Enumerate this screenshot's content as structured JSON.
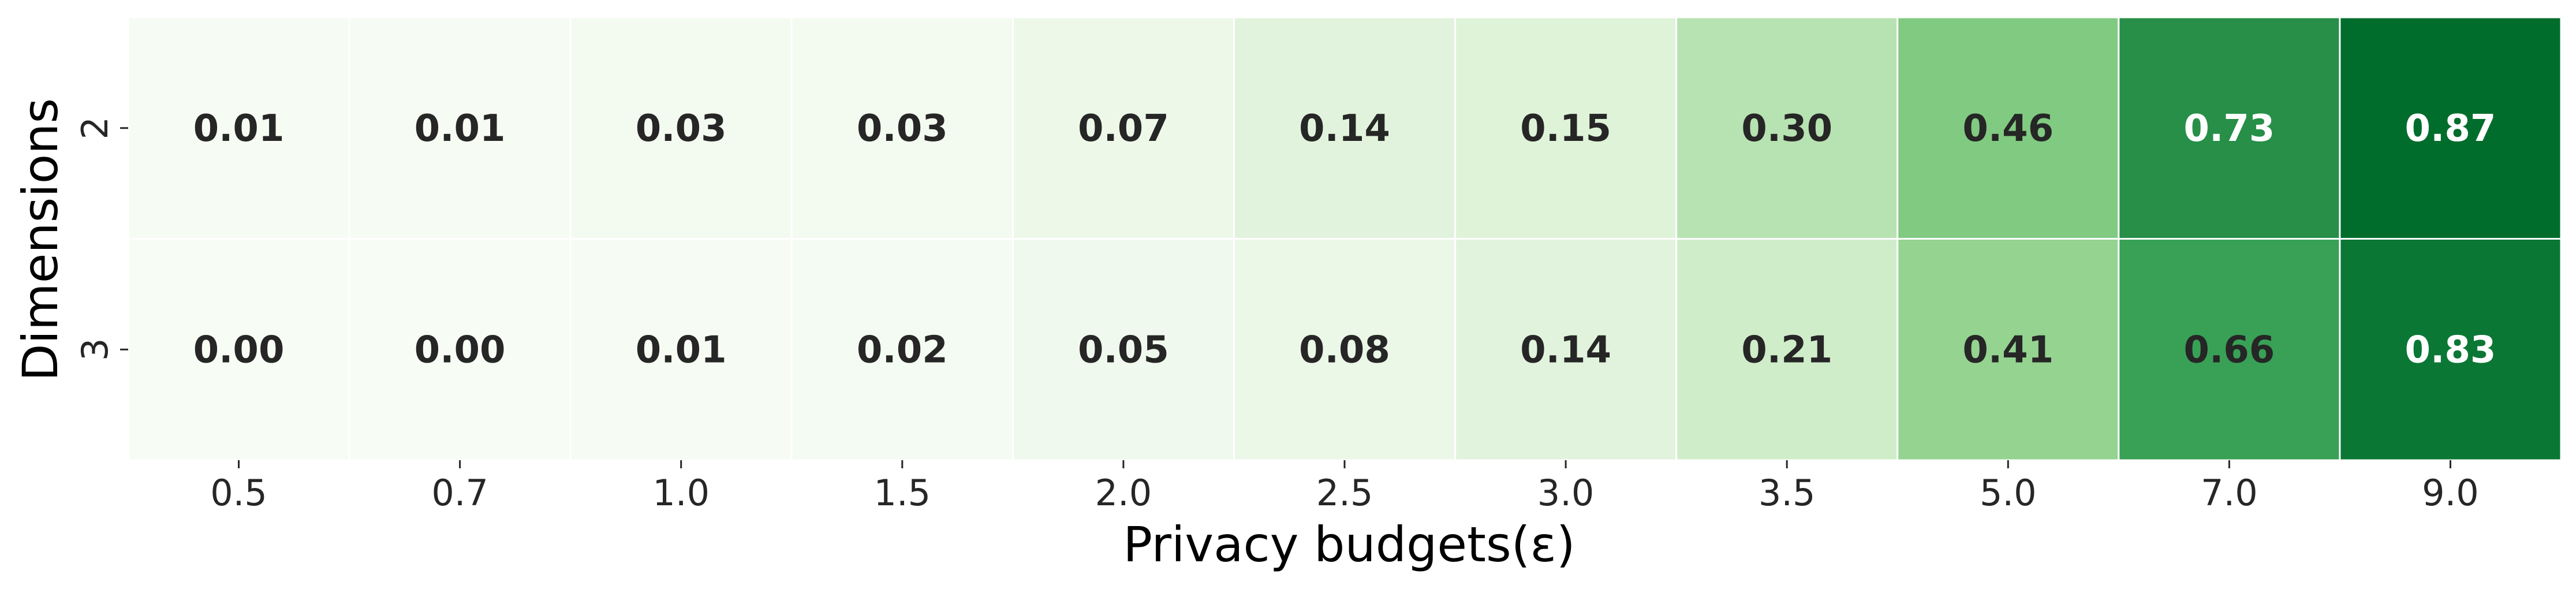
{
  "chart_data": {
    "type": "heatmap",
    "xlabel": "Privacy budgets(ε)",
    "ylabel": "Dimensions",
    "x_categories": [
      "0.5",
      "0.7",
      "1.0",
      "1.5",
      "2.0",
      "2.5",
      "3.0",
      "3.5",
      "5.0",
      "7.0",
      "9.0"
    ],
    "y_categories": [
      "2",
      "3"
    ],
    "values": [
      [
        0.01,
        0.01,
        0.03,
        0.03,
        0.07,
        0.14,
        0.15,
        0.3,
        0.46,
        0.73,
        0.87
      ],
      [
        0.0,
        0.0,
        0.01,
        0.02,
        0.05,
        0.08,
        0.14,
        0.21,
        0.41,
        0.66,
        0.83
      ]
    ],
    "value_format": "0.00",
    "colormap": "Greens",
    "vmin": 0.0,
    "vmax": 0.87,
    "colorbar": false,
    "grid": false
  }
}
